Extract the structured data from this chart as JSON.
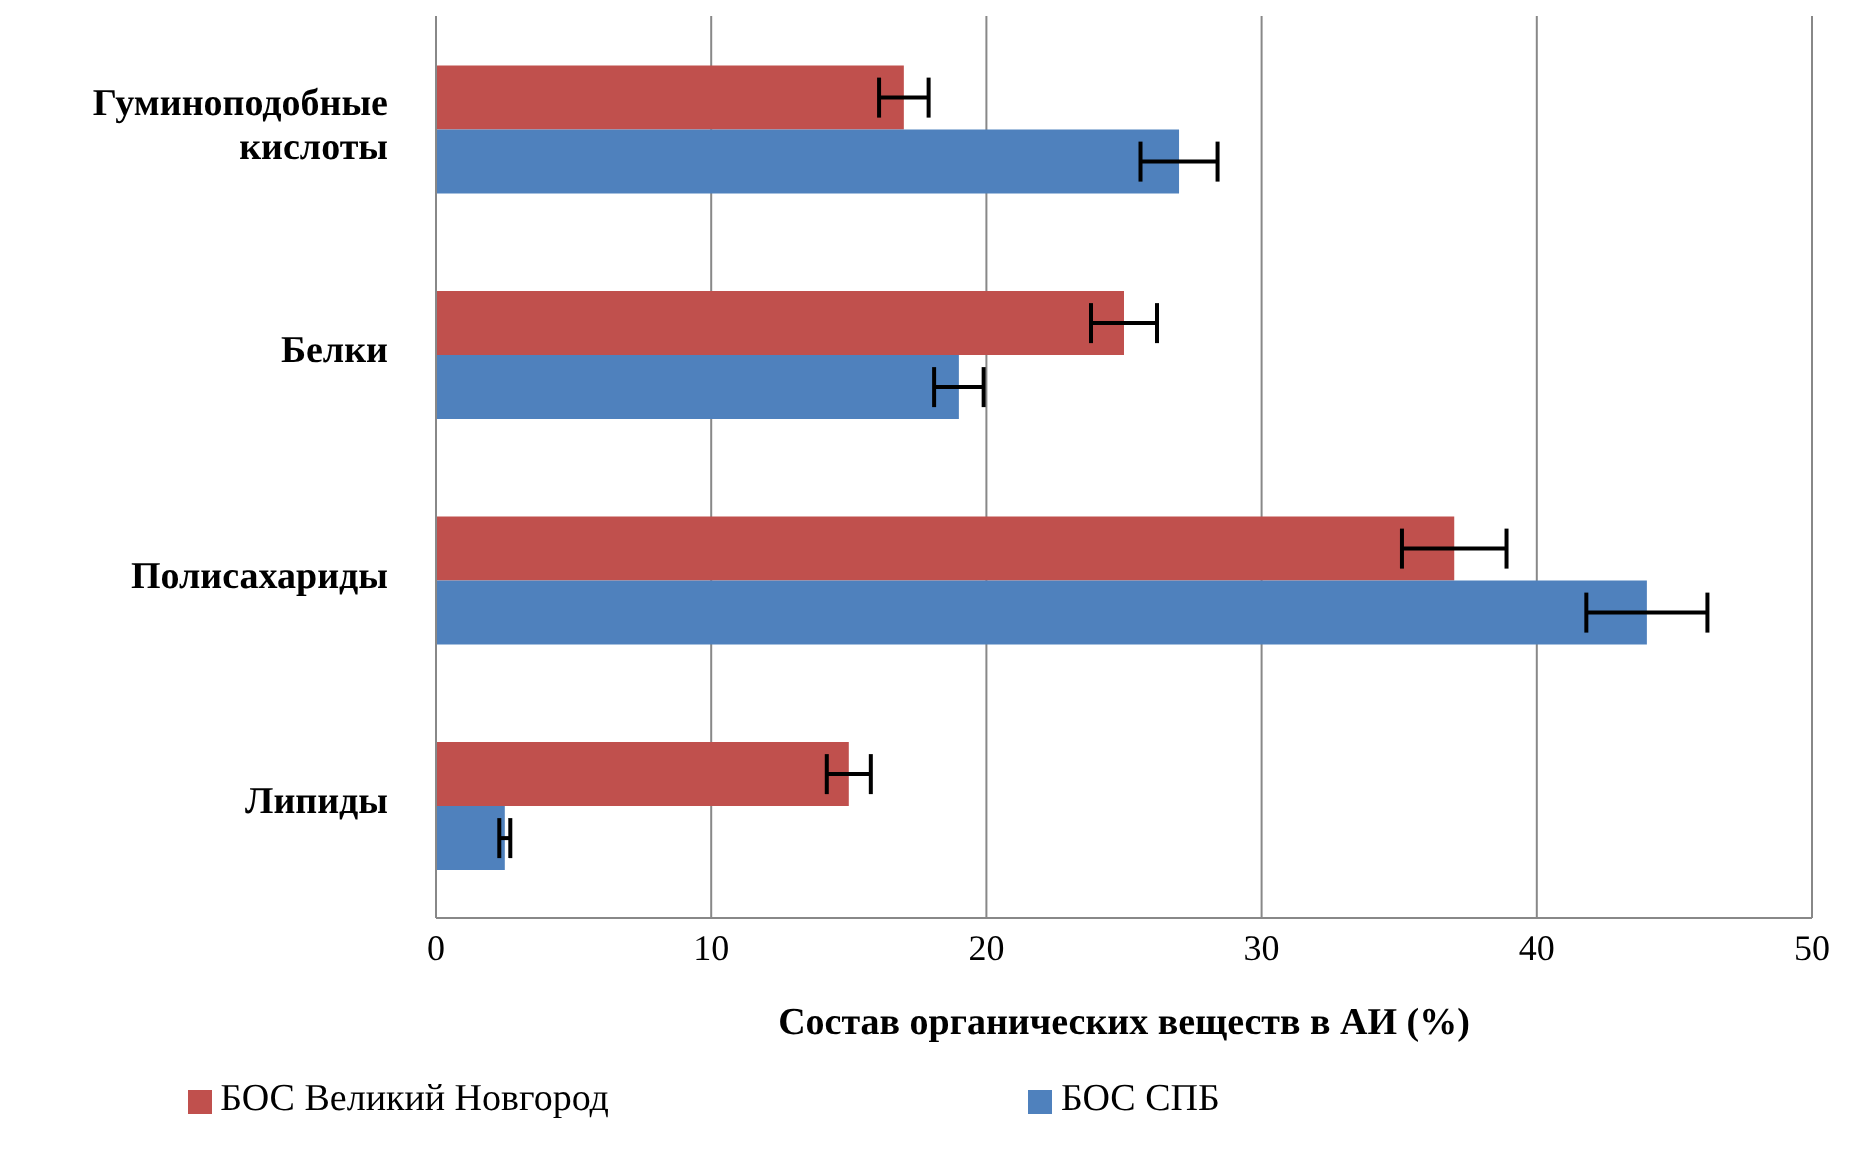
{
  "chart_data": {
    "type": "bar",
    "orientation": "horizontal",
    "xlabel": "Состав органических веществ в АИ  (%)",
    "categories": [
      "Гуминоподобные кислоты",
      "Белки",
      "Полисахариды",
      "Липиды"
    ],
    "series": [
      {
        "name": "БОС Великий Новгород",
        "color": "#c0504d",
        "values": [
          17,
          25,
          37,
          15
        ],
        "errors": [
          0.9,
          1.2,
          1.9,
          0.8
        ]
      },
      {
        "name": "БОС СПБ",
        "color": "#4f81bd",
        "values": [
          27,
          19,
          44,
          2.5
        ],
        "errors": [
          1.4,
          0.9,
          2.2,
          0.2
        ]
      }
    ],
    "xlim": [
      0,
      50
    ],
    "xticks": [
      0,
      10,
      20,
      30,
      40,
      50
    ],
    "grid": "x",
    "legend": "bottom"
  }
}
